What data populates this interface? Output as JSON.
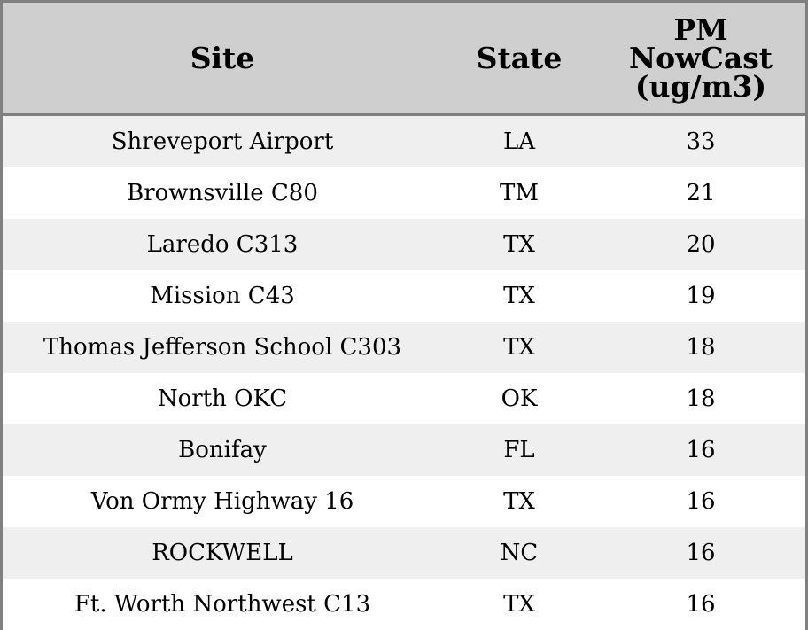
{
  "chart_data": {
    "type": "table",
    "columns": [
      "Site",
      "State",
      "PM NowCast (ug/m3)"
    ],
    "header_lines": [
      [
        "Site"
      ],
      [
        "State"
      ],
      [
        "PM",
        "NowCast",
        "(ug/m3)"
      ]
    ],
    "rows": [
      {
        "site": "Shreveport Airport",
        "state": "LA",
        "pm": 33
      },
      {
        "site": "Brownsville C80",
        "state": "TM",
        "pm": 21
      },
      {
        "site": "Laredo C313",
        "state": "TX",
        "pm": 20
      },
      {
        "site": "Mission C43",
        "state": "TX",
        "pm": 19
      },
      {
        "site": "Thomas Jefferson School C303",
        "state": "TX",
        "pm": 18
      },
      {
        "site": "North OKC",
        "state": "OK",
        "pm": 18
      },
      {
        "site": "Bonifay",
        "state": "FL",
        "pm": 16
      },
      {
        "site": "Von Ormy Highway 16",
        "state": "TX",
        "pm": 16
      },
      {
        "site": "ROCKWELL",
        "state": "NC",
        "pm": 16
      },
      {
        "site": "Ft. Worth Northwest C13",
        "state": "TX",
        "pm": 16
      }
    ]
  },
  "colors": {
    "header_bg": "#cfcfcf",
    "row_alt_bg": "#efefef",
    "row_bg": "#ffffff",
    "border": "#808080"
  }
}
